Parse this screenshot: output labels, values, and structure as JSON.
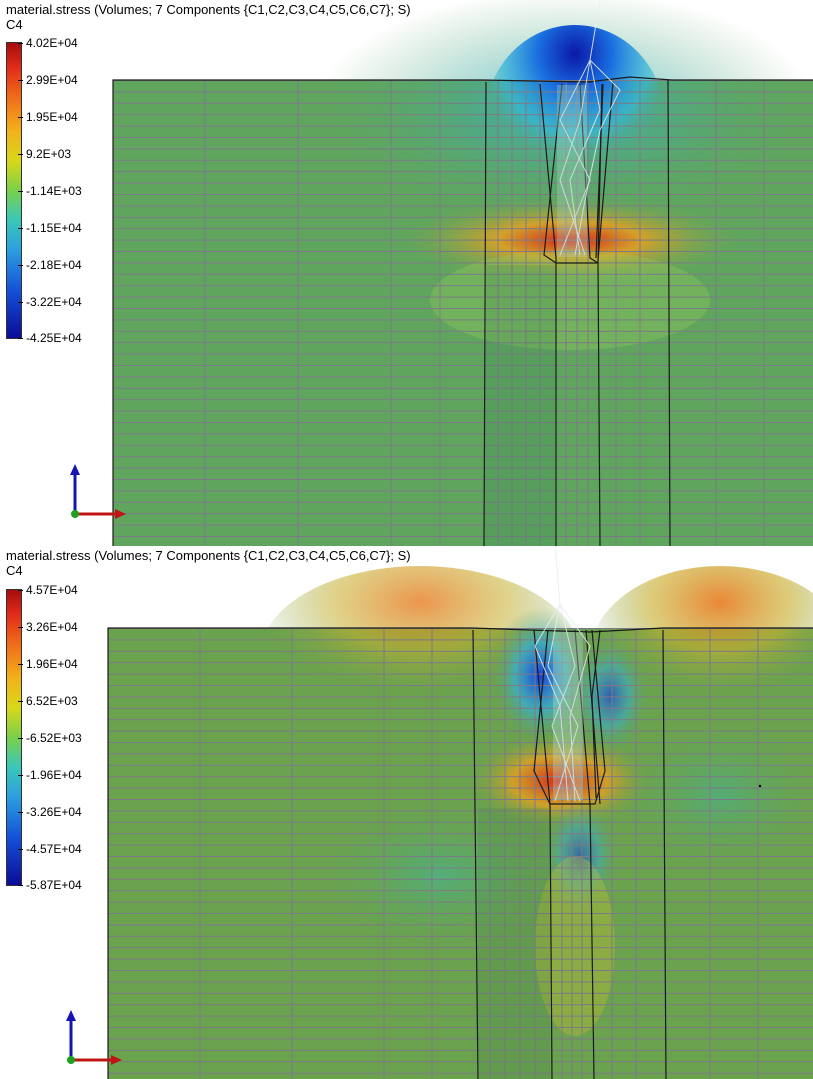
{
  "viewports": [
    {
      "title": "material.stress (Volumes; 7 Components {C1,C2,C3,C4,C5,C6,C7}; S)",
      "component": "C4",
      "legend_ticks": [
        "4.02E+04",
        "2.99E+04",
        "1.95E+04",
        "9.2E+03",
        "-1.14E+03",
        "-1.15E+04",
        "-2.18E+04",
        "-3.22E+04",
        "-4.25E+04"
      ]
    },
    {
      "title": "material.stress (Volumes; 7 Components {C1,C2,C3,C4,C5,C6,C7}; S)",
      "component": "C4",
      "legend_ticks": [
        "4.57E+04",
        "3.26E+04",
        "1.96E+04",
        "6.52E+03",
        "-6.52E+03",
        "-1.96E+04",
        "-3.26E+04",
        "-4.57E+04",
        "-5.87E+04"
      ]
    }
  ],
  "colors": {
    "background_field_top": "#5fa55e",
    "background_field_bottom": "#6aa24e",
    "mesh_line": "#7c7a86",
    "axis_y": "#1414b4",
    "axis_x": "#c01414",
    "axis_origin": "#1fa01f"
  },
  "icons": {
    "axes_triad": "xy-axes-triad-icon"
  }
}
